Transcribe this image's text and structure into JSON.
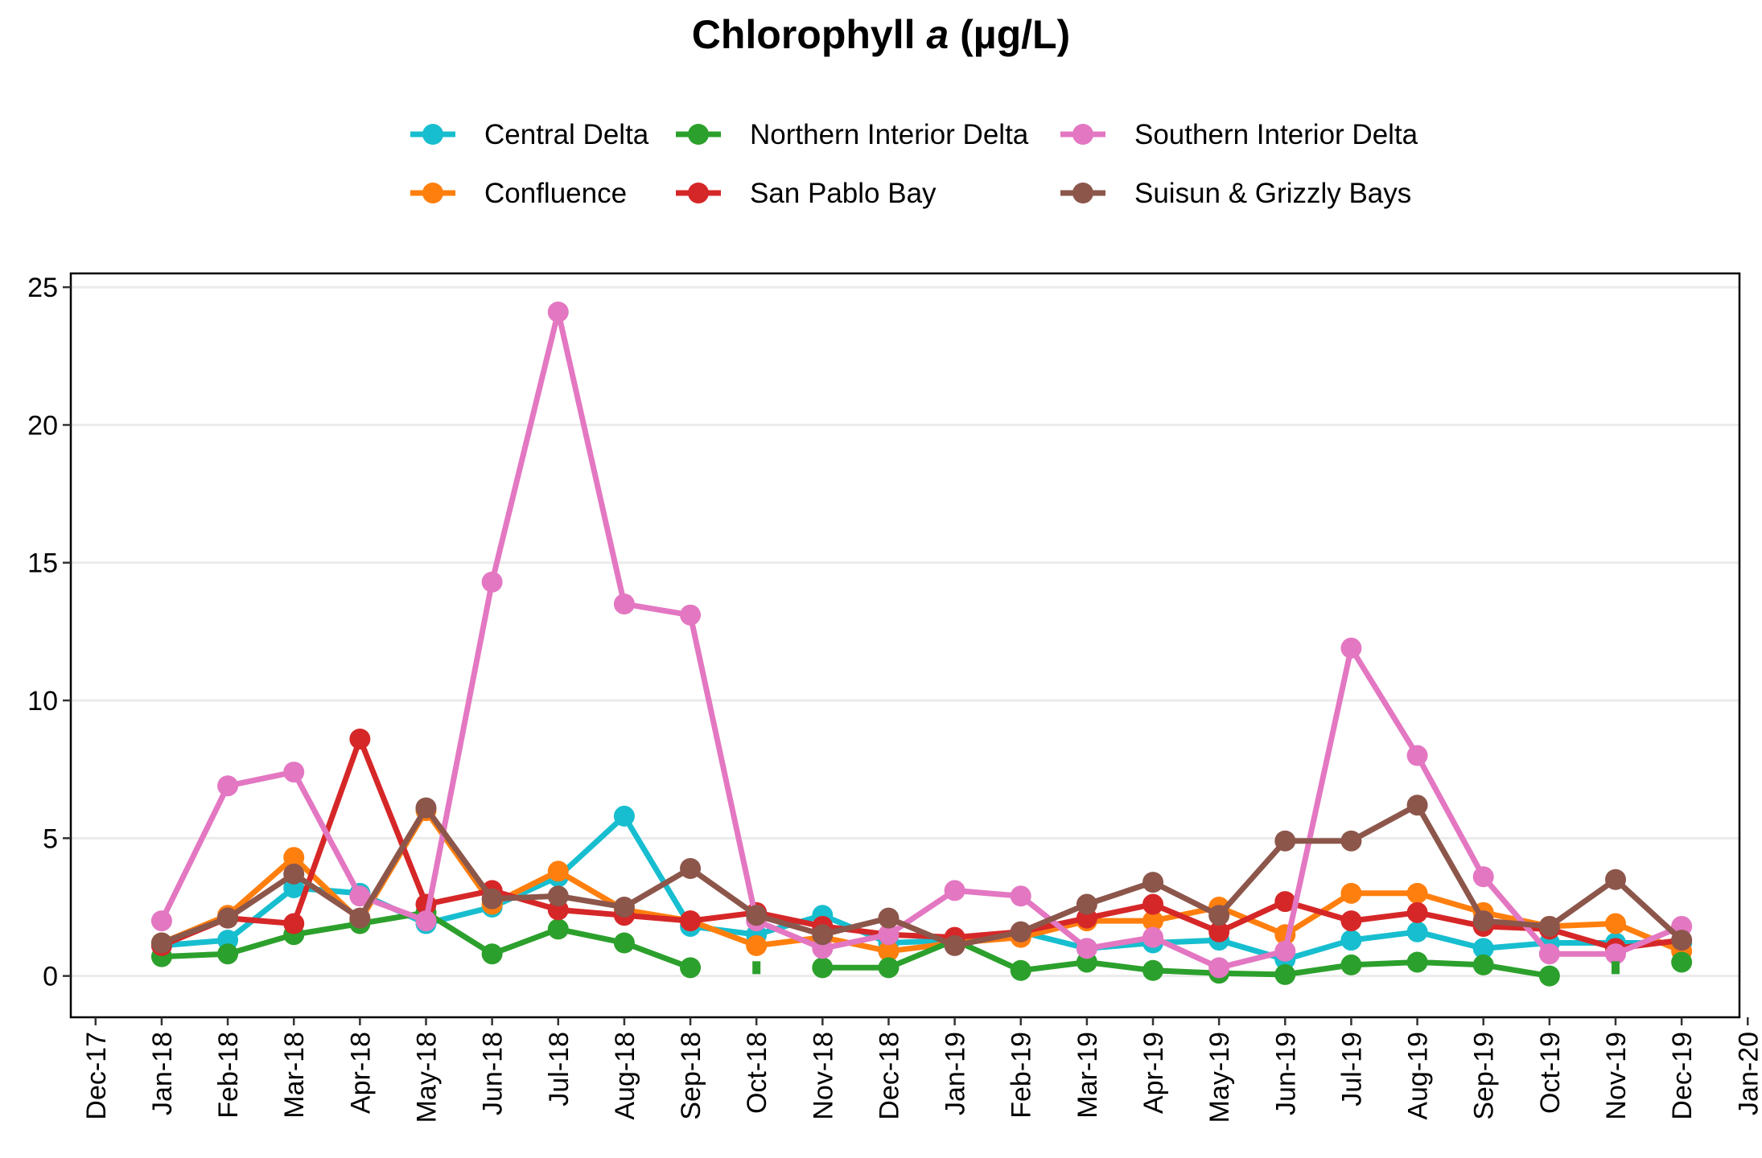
{
  "chart_data": {
    "type": "line",
    "title": "Chlorophyll ",
    "title_italic": "a",
    "title_suffix": " (µg/L)",
    "xlabel": "",
    "ylabel": "",
    "ylim": [
      -1.5,
      25.5
    ],
    "yticks": [
      0,
      5,
      10,
      15,
      20,
      25
    ],
    "xticks": [
      "Dec-17",
      "Jan-18",
      "Feb-18",
      "Mar-18",
      "Apr-18",
      "May-18",
      "Jun-18",
      "Jul-18",
      "Aug-18",
      "Sep-18",
      "Oct-18",
      "Nov-18",
      "Dec-18",
      "Jan-19",
      "Feb-19",
      "Mar-19",
      "Apr-19",
      "May-19",
      "Jun-19",
      "Jul-19",
      "Aug-19",
      "Sep-19",
      "Oct-19",
      "Nov-19",
      "Dec-19",
      "Jan-20"
    ],
    "x": [
      "Jan-18",
      "Feb-18",
      "Mar-18",
      "Apr-18",
      "May-18",
      "Jun-18",
      "Jul-18",
      "Aug-18",
      "Sep-18",
      "Oct-18",
      "Nov-18",
      "Dec-18",
      "Jan-19",
      "Feb-19",
      "Mar-19",
      "Apr-19",
      "May-19",
      "Jun-19",
      "Jul-19",
      "Aug-19",
      "Sep-19",
      "Oct-19",
      "Nov-19",
      "Dec-19"
    ],
    "grid": "horizontal",
    "legend_position": "top",
    "series": [
      {
        "name": "Central Delta",
        "color": "#17becf",
        "values": [
          1.1,
          1.3,
          3.2,
          3.0,
          1.9,
          2.5,
          3.6,
          5.8,
          1.8,
          1.5,
          2.2,
          1.2,
          1.3,
          1.6,
          1.0,
          1.2,
          1.3,
          0.6,
          1.3,
          1.6,
          1.0,
          1.2,
          1.2,
          1.2
        ]
      },
      {
        "name": "Confluence",
        "color": "#ff7f0e",
        "values": [
          1.2,
          2.2,
          4.3,
          2.0,
          6.0,
          2.6,
          3.8,
          2.4,
          2.0,
          1.1,
          1.4,
          0.9,
          1.2,
          1.4,
          2.0,
          2.0,
          2.5,
          1.5,
          3.0,
          3.0,
          2.3,
          1.8,
          1.9,
          0.9
        ]
      },
      {
        "name": "Northern Interior Delta",
        "color": "#2ca02c",
        "values": [
          0.7,
          0.8,
          1.5,
          1.9,
          2.3,
          0.8,
          1.7,
          1.2,
          0.3,
          null,
          0.3,
          0.3,
          1.3,
          0.2,
          0.5,
          0.2,
          0.1,
          0.05,
          0.4,
          0.5,
          0.4,
          0.0,
          null,
          0.5
        ]
      },
      {
        "name": "San Pablo Bay",
        "color": "#d62728",
        "values": [
          1.1,
          2.1,
          1.9,
          8.6,
          2.6,
          3.1,
          2.4,
          2.2,
          2.0,
          2.3,
          1.8,
          1.5,
          1.4,
          1.6,
          2.1,
          2.6,
          1.6,
          2.7,
          2.0,
          2.3,
          1.8,
          1.7,
          1.0,
          1.3
        ]
      },
      {
        "name": "Southern Interior Delta",
        "color": "#e377c2",
        "values": [
          2.0,
          6.9,
          7.4,
          2.9,
          2.0,
          14.3,
          24.1,
          13.5,
          13.1,
          2.0,
          1.0,
          1.5,
          3.1,
          2.9,
          1.0,
          1.4,
          0.3,
          0.9,
          11.9,
          8.0,
          3.6,
          0.8,
          0.8,
          1.8
        ]
      },
      {
        "name": "Suisun & Grizzly Bays",
        "color": "#8c564b",
        "values": [
          1.2,
          2.1,
          3.7,
          2.1,
          6.1,
          2.8,
          2.9,
          2.5,
          3.9,
          2.2,
          1.5,
          2.1,
          1.1,
          1.6,
          2.6,
          3.4,
          2.2,
          4.9,
          4.9,
          6.2,
          2.0,
          1.8,
          3.5,
          1.3
        ]
      }
    ],
    "isolated_marks": [
      {
        "series": "Northern Interior Delta",
        "x": "Oct-18",
        "value": 0.3
      },
      {
        "series": "Northern Interior Delta",
        "x": "Nov-19",
        "value": 0.3
      }
    ]
  }
}
